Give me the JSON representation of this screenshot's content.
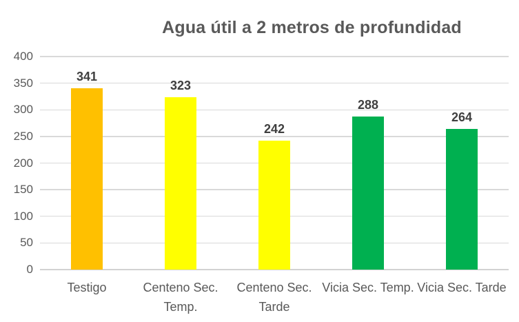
{
  "chart_data": {
    "type": "bar",
    "title": "Agua útil a 2 metros de profundidad",
    "categories": [
      "Testigo",
      "Centeno Sec. Temp.",
      "Centeno Sec. Tarde",
      "Vicia Sec. Temp.",
      "Vicia Sec. Tarde"
    ],
    "values": [
      341,
      323,
      242,
      288,
      264
    ],
    "data_labels": [
      "341",
      "323",
      "242",
      "288",
      "264"
    ],
    "bar_colors": [
      "#FFC000",
      "#FFFF00",
      "#FFFF00",
      "#00B050",
      "#00B050"
    ],
    "xlabel": "",
    "ylabel": "",
    "ylim": [
      0,
      400
    ],
    "yticks": [
      0,
      50,
      100,
      150,
      200,
      250,
      300,
      350,
      400
    ],
    "grid": true,
    "legend": "none"
  },
  "colors": {
    "title_text": "#595959",
    "axis_text": "#595959",
    "data_label_text": "#3F3F3F",
    "gridline": "#D9D9D9",
    "axis_line": "#D2D2D2",
    "background": "#FFFFFF"
  }
}
